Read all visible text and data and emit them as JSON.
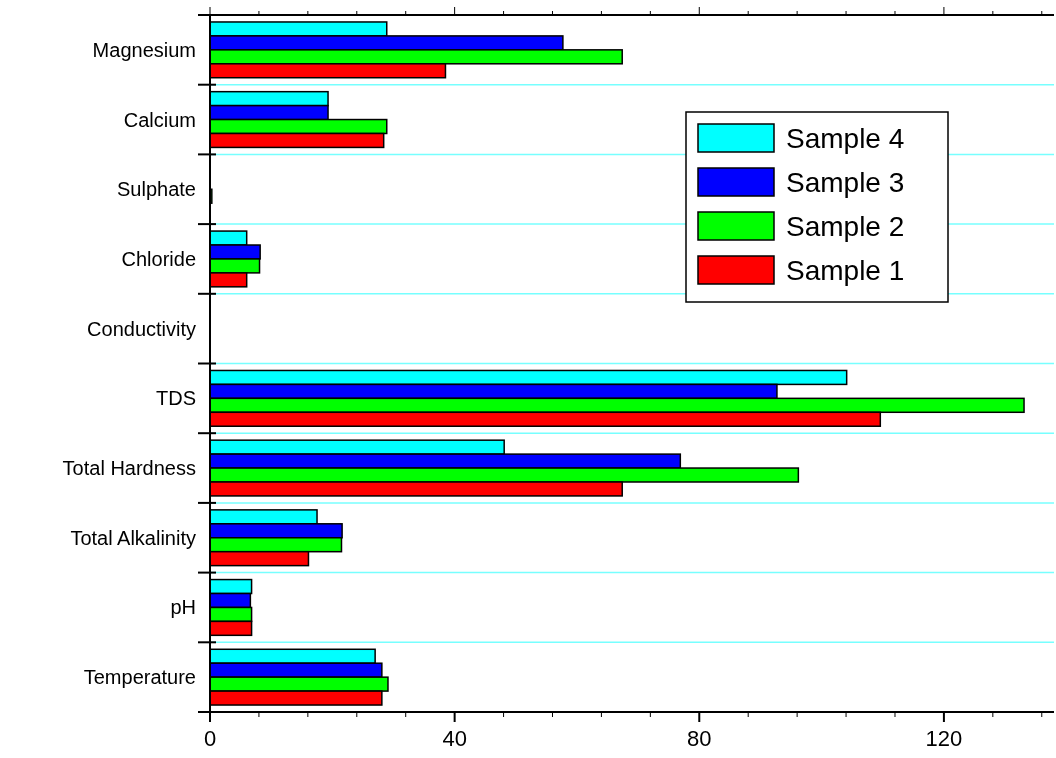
{
  "chart_data": {
    "type": "bar",
    "orientation": "horizontal",
    "categories": [
      "Magnesium",
      "Calcium",
      "Sulphate",
      "Chloride",
      "Conductivity",
      "TDS",
      "Total Hardness",
      "Total Alkalinity",
      "pH",
      "Temperature"
    ],
    "series": [
      {
        "name": "Sample 4",
        "color": "#00ffff",
        "values": [
          28.9,
          19.3,
          0,
          6.0,
          null,
          104.1,
          48.1,
          17.5,
          6.8,
          27.0
        ]
      },
      {
        "name": "Sample 3",
        "color": "#0000ff",
        "values": [
          57.7,
          19.3,
          0,
          8.2,
          null,
          92.7,
          76.9,
          21.6,
          6.6,
          28.1
        ]
      },
      {
        "name": "Sample 2",
        "color": "#00ff00",
        "values": [
          67.4,
          28.9,
          0.3,
          8.1,
          null,
          133.1,
          96.2,
          21.5,
          6.8,
          29.1
        ]
      },
      {
        "name": "Sample 1",
        "color": "#ff0000",
        "values": [
          38.5,
          28.4,
          0,
          6.0,
          null,
          109.6,
          67.4,
          16.1,
          6.8,
          28.1
        ]
      }
    ],
    "xlim": [
      0,
      138
    ],
    "xticks": [
      0,
      {
        "value": 8,
        "label": null
      },
      {
        "value": 16,
        "label": null
      },
      {
        "value": 24,
        "label": null
      },
      {
        "value": 32,
        "label": null
      },
      40,
      {
        "value": 48,
        "label": null
      },
      {
        "value": 56,
        "label": null
      },
      {
        "value": 64,
        "label": null
      },
      {
        "value": 72,
        "label": null
      },
      80,
      {
        "value": 88,
        "label": null
      },
      {
        "value": 96,
        "label": null
      },
      {
        "value": 104,
        "label": null
      },
      {
        "value": 112,
        "label": null
      },
      120,
      {
        "value": 128,
        "label": null
      },
      {
        "value": 136,
        "label": null
      }
    ],
    "grid": "y",
    "legend": "top right"
  }
}
